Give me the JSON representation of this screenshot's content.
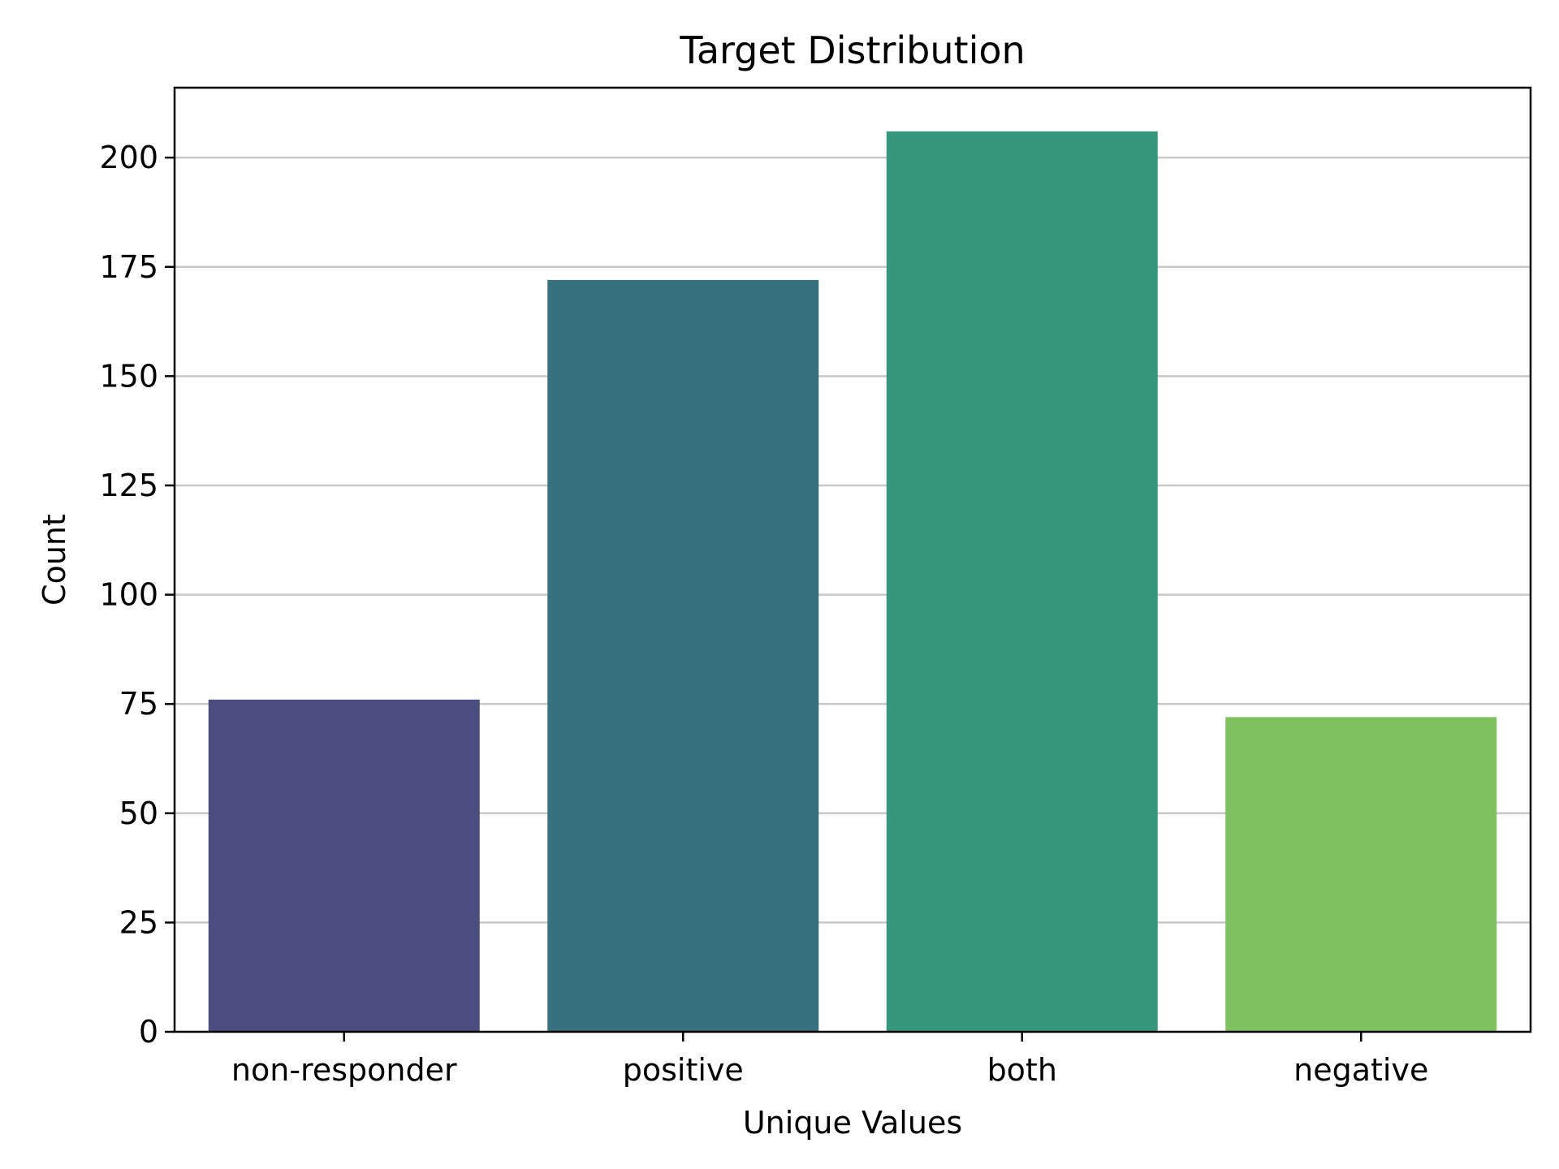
{
  "chart_data": {
    "type": "bar",
    "title": "Target Distribution",
    "xlabel": "Unique Values",
    "ylabel": "Count",
    "categories": [
      "non-responder",
      "positive",
      "both",
      "negative"
    ],
    "values": [
      76,
      172,
      206,
      72
    ],
    "colors": [
      "#4a4d7d",
      "#37707f",
      "#35977c",
      "#80c160"
    ],
    "ylim": [
      0,
      216
    ],
    "yticks": [
      0,
      25,
      50,
      75,
      100,
      125,
      150,
      175,
      200
    ],
    "grid": "horizontal",
    "legend": "none"
  }
}
